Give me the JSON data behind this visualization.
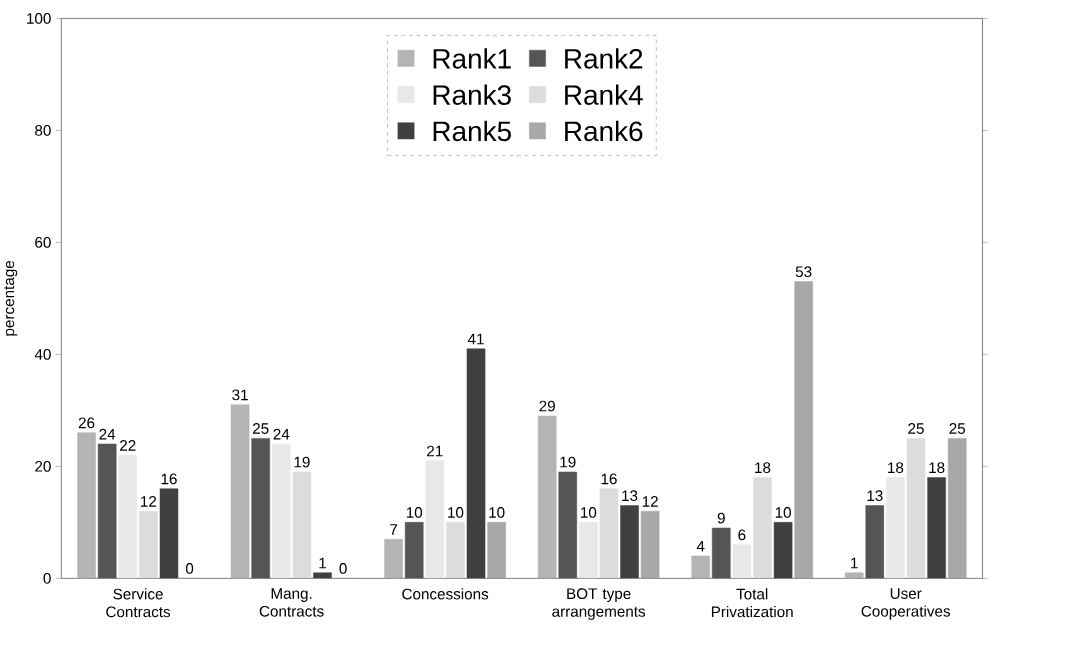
{
  "chart_data": {
    "type": "bar",
    "ylabel": "percentage",
    "categories": [
      "Service Contracts",
      "Mang. Contracts",
      "Concessions",
      "BOT type arrangements",
      "Total Privatization",
      "User Cooperatives"
    ],
    "series": [
      {
        "name": "Rank1",
        "color": "#b4b4b4",
        "values": [
          26,
          31,
          7,
          29,
          4,
          1
        ]
      },
      {
        "name": "Rank2",
        "color": "#555555",
        "values": [
          24,
          25,
          10,
          19,
          9,
          13
        ]
      },
      {
        "name": "Rank3",
        "color": "#e8e8e8",
        "values": [
          22,
          24,
          21,
          10,
          6,
          18
        ]
      },
      {
        "name": "Rank4",
        "color": "#dcdcdc",
        "values": [
          12,
          19,
          10,
          16,
          18,
          25
        ]
      },
      {
        "name": "Rank5",
        "color": "#404040",
        "values": [
          16,
          1,
          41,
          13,
          10,
          18
        ]
      },
      {
        "name": "Rank6",
        "color": "#a8a8a8",
        "values": [
          0,
          0,
          10,
          12,
          53,
          25
        ]
      }
    ],
    "ylim": [
      0,
      100
    ],
    "yticks": [
      0,
      20,
      40,
      60,
      80,
      100
    ],
    "grid": false,
    "legend": "top",
    "data_labels": true
  }
}
